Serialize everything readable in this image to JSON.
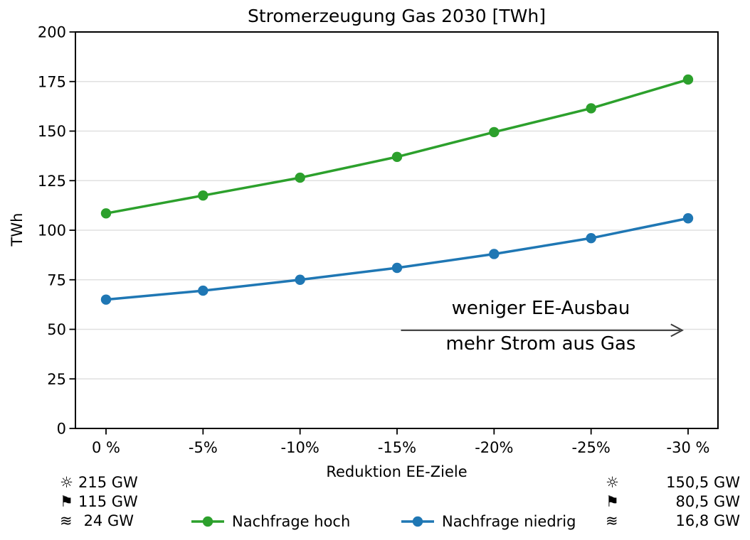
{
  "figure": {
    "title": "Stromerzeugung Gas 2030 [TWh]",
    "background": "#ffffff"
  },
  "chart_data": {
    "type": "line",
    "title": "Stromerzeugung Gas 2030 [TWh]",
    "xlabel": "Reduktion EE-Ziele",
    "ylabel": "TWh",
    "categories": [
      "0 %",
      "-5%",
      "-10%",
      "-15%",
      "-20%",
      "-25%",
      "-30 %"
    ],
    "x_values_percent": [
      0,
      -5,
      -10,
      -15,
      -20,
      -25,
      -30
    ],
    "ylim": [
      0,
      200
    ],
    "y_ticks": [
      0,
      25,
      50,
      75,
      100,
      125,
      150,
      175,
      200
    ],
    "grid": "horizontal-only",
    "grid_color": "#e0e0e0",
    "spine_color": "#000000",
    "series": [
      {
        "name": "Nachfrage hoch",
        "color": "#2ca02c",
        "values": [
          108.5,
          117.5,
          126.5,
          137,
          149.5,
          161.5,
          176
        ]
      },
      {
        "name": "Nachfrage niedrig",
        "color": "#1f77b4",
        "values": [
          65,
          69.5,
          75,
          81,
          88,
          96,
          106
        ]
      }
    ],
    "annotation": {
      "line1": "weniger EE-Ausbau",
      "line2": "mehr Strom aus Gas",
      "arrow": {
        "y": 49.5,
        "x_start_percent": -15.2,
        "x_end_percent": -29.7,
        "color": "#3a3a3a"
      }
    },
    "legend": {
      "position": "bottom-center",
      "entries": [
        "Nachfrage hoch",
        "Nachfrage niedrig"
      ]
    }
  },
  "capacity_annotations": {
    "left": {
      "rows": [
        {
          "icon": "sun-icon",
          "symbol": "☼",
          "value": "215 GW"
        },
        {
          "icon": "flag-icon",
          "symbol": "⚑",
          "value": "115 GW"
        },
        {
          "icon": "waves-icon",
          "symbol": "≋",
          "value": "24 GW"
        }
      ]
    },
    "right": {
      "rows": [
        {
          "icon": "sun-icon",
          "symbol": "☼",
          "value": "150,5 GW"
        },
        {
          "icon": "flag-icon",
          "symbol": "⚑",
          "value": "80,5 GW"
        },
        {
          "icon": "waves-icon",
          "symbol": "≋",
          "value": "16,8 GW"
        }
      ]
    }
  }
}
